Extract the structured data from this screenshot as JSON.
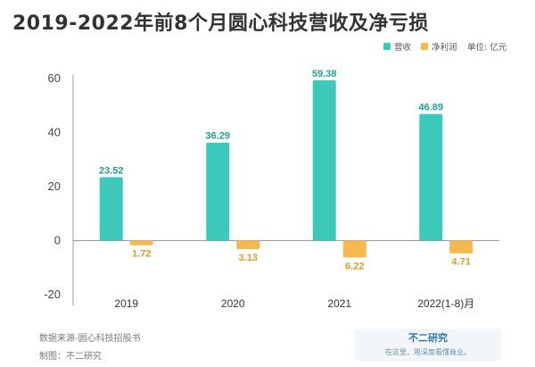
{
  "colors": {
    "revenue": "#3cc9b9",
    "revenue_dark": "#1fa596",
    "net_profit": "#f5b94d",
    "net_profit_dark": "#e09a2a"
  },
  "chart_data": {
    "type": "bar",
    "title": "2019-2022年前8个月圆心科技营收及净亏损",
    "categories": [
      "2019",
      "2020",
      "2021",
      "2022(1-8)月"
    ],
    "series": [
      {
        "name": "营收",
        "values": [
          23.52,
          36.29,
          59.38,
          46.89
        ],
        "color": "#3cc9b9"
      },
      {
        "name": "净利润",
        "values": [
          -1.72,
          -3.13,
          -6.22,
          -4.71
        ],
        "color": "#f5b94d"
      }
    ],
    "data_labels": {
      "营收": [
        "23.52",
        "36.29",
        "59.38",
        "46.89"
      ],
      "净利润": [
        "1.72",
        "3.13",
        "6.22",
        "4.71"
      ]
    },
    "unit_note": "单位: 亿元",
    "ylim": [
      -20,
      60
    ],
    "yticks": [
      -20,
      0,
      20,
      40,
      60
    ],
    "grid": false,
    "legend_position": "top-right"
  },
  "footer": {
    "source": "数据来源-圆心科技招股书",
    "maker": "制图：不二研究"
  },
  "brand": {
    "name": "不二研究",
    "slogan": "在这里，用深度看懂商业。"
  }
}
